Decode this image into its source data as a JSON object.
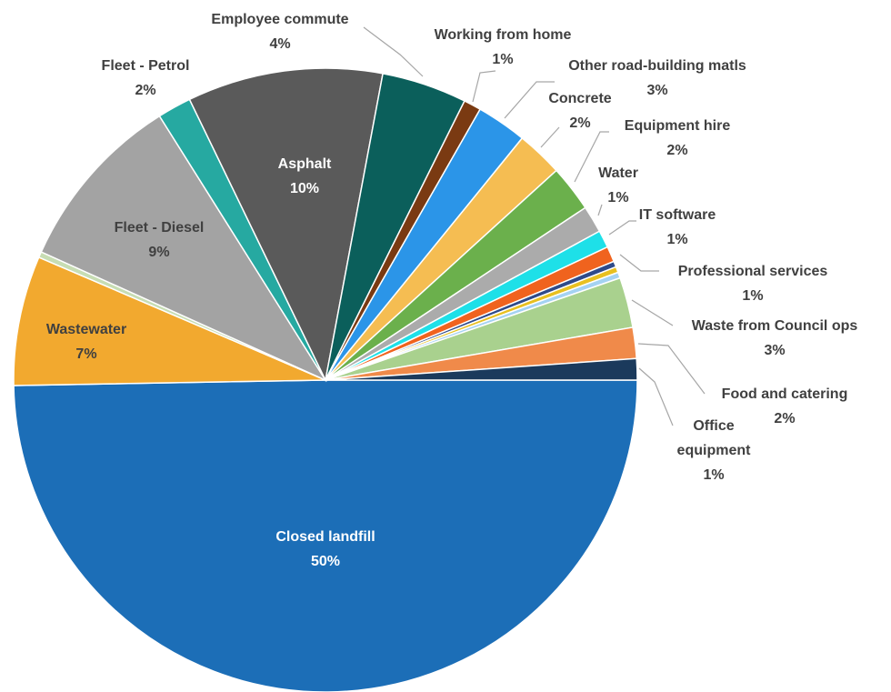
{
  "chart_data": {
    "type": "pie",
    "categories": [
      "Closed landfill",
      "Wastewater",
      null,
      "Fleet - Diesel",
      "Fleet - Petrol",
      "Asphalt",
      "Employee commute",
      "Working from home",
      "Other road-building matls",
      "Concrete",
      "Equipment hire",
      "Water",
      "IT software",
      "Professional services",
      null,
      null,
      null,
      "Waste from Council ops",
      "Food and catering",
      "Office equipment"
    ],
    "values": [
      49.6,
      6.7,
      0.3,
      9.3,
      1.75,
      10.1,
      4.4,
      0.9,
      2.6,
      2.4,
      2.4,
      1.4,
      0.9,
      0.8,
      0.3,
      0.3,
      0.3,
      2.6,
      1.6,
      1.1
    ],
    "value_labels": [
      "50%",
      "7%",
      null,
      "9%",
      "2%",
      "10%",
      "4%",
      "1%",
      "3%",
      "2%",
      "2%",
      "1%",
      "1%",
      "1%",
      null,
      null,
      null,
      "3%",
      "2%",
      "1%"
    ],
    "colors": [
      "#1c6eb7",
      "#f2a92f",
      "#c7ddb3",
      "#a3a3a3",
      "#26a9a1",
      "#5a5a5a",
      "#0b5f5b",
      "#7a3a12",
      "#2b95e8",
      "#f5bd52",
      "#6bb04c",
      "#ababab",
      "#1ee0e8",
      "#f0631e",
      "#2e4a8a",
      "#e8c020",
      "#a4d2f2",
      "#a9d18e",
      "#f08a4a",
      "#1b3a5c"
    ]
  }
}
